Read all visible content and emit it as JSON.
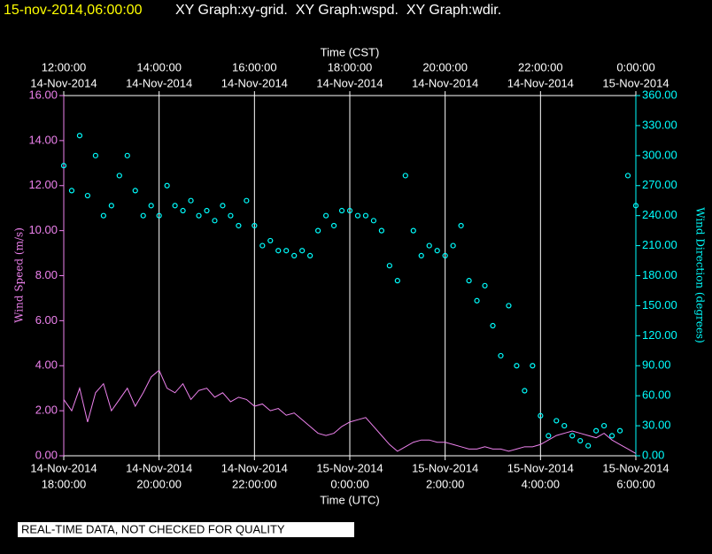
{
  "chart_data": {
    "type": "line",
    "title": "15-nov-2014,06:00:00",
    "subtitle": "XY Graph:xy-grid.  XY Graph:wspd.  XY Graph:wdir.",
    "note": "REAL-TIME DATA, NOT CHECKED FOR QUALITY",
    "xlabel": "Time (UTC)",
    "x2label": "Time (CST)",
    "ylabel": "Wind Speed (m/s)",
    "y2label": "Wind Direction (degrees)",
    "grid": true,
    "xlim": [
      "2014-11-14T18:00",
      "2014-11-15T06:00"
    ],
    "xticks": [
      {
        "value": "2014-11-14T18:00",
        "label": [
          "14-Nov-2014",
          "18:00:00"
        ]
      },
      {
        "value": "2014-11-14T20:00",
        "label": [
          "14-Nov-2014",
          "20:00:00"
        ]
      },
      {
        "value": "2014-11-14T22:00",
        "label": [
          "14-Nov-2014",
          "22:00:00"
        ]
      },
      {
        "value": "2014-11-15T00:00",
        "label": [
          "15-Nov-2014",
          "0:00:00"
        ]
      },
      {
        "value": "2014-11-15T02:00",
        "label": [
          "15-Nov-2014",
          "2:00:00"
        ]
      },
      {
        "value": "2014-11-15T04:00",
        "label": [
          "15-Nov-2014",
          "4:00:00"
        ]
      },
      {
        "value": "2014-11-15T06:00",
        "label": [
          "15-Nov-2014",
          "6:00:00"
        ]
      }
    ],
    "x2ticks": [
      {
        "value": "2014-11-14T18:00",
        "label": [
          "12:00:00",
          "14-Nov-2014"
        ]
      },
      {
        "value": "2014-11-14T20:00",
        "label": [
          "14:00:00",
          "14-Nov-2014"
        ]
      },
      {
        "value": "2014-11-14T22:00",
        "label": [
          "16:00:00",
          "14-Nov-2014"
        ]
      },
      {
        "value": "2014-11-15T00:00",
        "label": [
          "18:00:00",
          "14-Nov-2014"
        ]
      },
      {
        "value": "2014-11-15T02:00",
        "label": [
          "20:00:00",
          "14-Nov-2014"
        ]
      },
      {
        "value": "2014-11-15T04:00",
        "label": [
          "22:00:00",
          "14-Nov-2014"
        ]
      },
      {
        "value": "2014-11-15T06:00",
        "label": [
          "0:00:00",
          "15-Nov-2014"
        ]
      }
    ],
    "ylim": [
      0,
      16
    ],
    "yticks": [
      {
        "value": 0,
        "label": "0.00"
      },
      {
        "value": 2,
        "label": "2.00"
      },
      {
        "value": 4,
        "label": "4.00"
      },
      {
        "value": 6,
        "label": "6.00"
      },
      {
        "value": 8,
        "label": "8.00"
      },
      {
        "value": 10,
        "label": "10.00"
      },
      {
        "value": 12,
        "label": "12.00"
      },
      {
        "value": 14,
        "label": "14.00"
      },
      {
        "value": 16,
        "label": "16.00"
      }
    ],
    "y2lim": [
      0,
      360
    ],
    "y2ticks": [
      {
        "value": 0,
        "label": "0.00"
      },
      {
        "value": 30,
        "label": "30.00"
      },
      {
        "value": 60,
        "label": "60.00"
      },
      {
        "value": 90,
        "label": "90.00"
      },
      {
        "value": 120,
        "label": "120.00"
      },
      {
        "value": 150,
        "label": "150.00"
      },
      {
        "value": 180,
        "label": "180.00"
      },
      {
        "value": 210,
        "label": "210.00"
      },
      {
        "value": 240,
        "label": "240.00"
      },
      {
        "value": 270,
        "label": "270.00"
      },
      {
        "value": 300,
        "label": "300.00"
      },
      {
        "value": 330,
        "label": "330.00"
      },
      {
        "value": 360,
        "label": "360.00"
      }
    ],
    "x": [
      "2014-11-14T18:00",
      "2014-11-14T18:10",
      "2014-11-14T18:20",
      "2014-11-14T18:30",
      "2014-11-14T18:40",
      "2014-11-14T18:50",
      "2014-11-14T19:00",
      "2014-11-14T19:10",
      "2014-11-14T19:20",
      "2014-11-14T19:30",
      "2014-11-14T19:40",
      "2014-11-14T19:50",
      "2014-11-14T20:00",
      "2014-11-14T20:10",
      "2014-11-14T20:20",
      "2014-11-14T20:30",
      "2014-11-14T20:40",
      "2014-11-14T20:50",
      "2014-11-14T21:00",
      "2014-11-14T21:10",
      "2014-11-14T21:20",
      "2014-11-14T21:30",
      "2014-11-14T21:40",
      "2014-11-14T21:50",
      "2014-11-14T22:00",
      "2014-11-14T22:10",
      "2014-11-14T22:20",
      "2014-11-14T22:30",
      "2014-11-14T22:40",
      "2014-11-14T22:50",
      "2014-11-14T23:00",
      "2014-11-14T23:10",
      "2014-11-14T23:20",
      "2014-11-14T23:30",
      "2014-11-14T23:40",
      "2014-11-14T23:50",
      "2014-11-15T00:00",
      "2014-11-15T00:10",
      "2014-11-15T00:20",
      "2014-11-15T00:30",
      "2014-11-15T00:40",
      "2014-11-15T00:50",
      "2014-11-15T01:00",
      "2014-11-15T01:10",
      "2014-11-15T01:20",
      "2014-11-15T01:30",
      "2014-11-15T01:40",
      "2014-11-15T01:50",
      "2014-11-15T02:00",
      "2014-11-15T02:10",
      "2014-11-15T02:20",
      "2014-11-15T02:30",
      "2014-11-15T02:40",
      "2014-11-15T02:50",
      "2014-11-15T03:00",
      "2014-11-15T03:10",
      "2014-11-15T03:20",
      "2014-11-15T03:30",
      "2014-11-15T03:40",
      "2014-11-15T03:50",
      "2014-11-15T04:00",
      "2014-11-15T04:10",
      "2014-11-15T04:20",
      "2014-11-15T04:30",
      "2014-11-15T04:40",
      "2014-11-15T04:50",
      "2014-11-15T05:00",
      "2014-11-15T05:10",
      "2014-11-15T05:20",
      "2014-11-15T05:30",
      "2014-11-15T05:40",
      "2014-11-15T05:50",
      "2014-11-15T06:00"
    ],
    "series": [
      {
        "style": "line",
        "color": "#ee82ee",
        "values": [
          2.5,
          2.0,
          3.0,
          1.5,
          2.8,
          3.2,
          2.0,
          2.5,
          3.0,
          2.2,
          2.8,
          3.5,
          3.8,
          3.0,
          2.8,
          3.2,
          2.5,
          2.9,
          3.0,
          2.6,
          2.8,
          2.4,
          2.6,
          2.5,
          2.2,
          2.3,
          2.0,
          2.1,
          1.8,
          1.9,
          1.6,
          1.3,
          1.0,
          0.9,
          1.0,
          1.3,
          1.5,
          1.6,
          1.7,
          1.3,
          0.9,
          0.5,
          0.2,
          0.4,
          0.6,
          0.7,
          0.7,
          0.6,
          0.6,
          0.5,
          0.4,
          0.3,
          0.3,
          0.4,
          0.3,
          0.3,
          0.2,
          0.3,
          0.4,
          0.4,
          0.5,
          0.7,
          0.9,
          1.0,
          1.1,
          1.0,
          0.9,
          0.8,
          1.0,
          0.7,
          0.5,
          0.3,
          0.1
        ]
      },
      {
        "style": "markers",
        "axis": "y2",
        "color": "#00ffff",
        "values": [
          290,
          265,
          320,
          260,
          300,
          240,
          250,
          280,
          300,
          265,
          240,
          250,
          240,
          270,
          250,
          245,
          255,
          240,
          245,
          235,
          250,
          240,
          230,
          255,
          230,
          210,
          215,
          205,
          205,
          200,
          205,
          200,
          225,
          240,
          230,
          245,
          245,
          240,
          240,
          235,
          225,
          190,
          175,
          280,
          225,
          200,
          210,
          205,
          200,
          210,
          230,
          175,
          155,
          170,
          130,
          100,
          150,
          90,
          65,
          90,
          40,
          20,
          35,
          30,
          20,
          15,
          10,
          25,
          30,
          20,
          25,
          280,
          250
        ]
      }
    ]
  }
}
